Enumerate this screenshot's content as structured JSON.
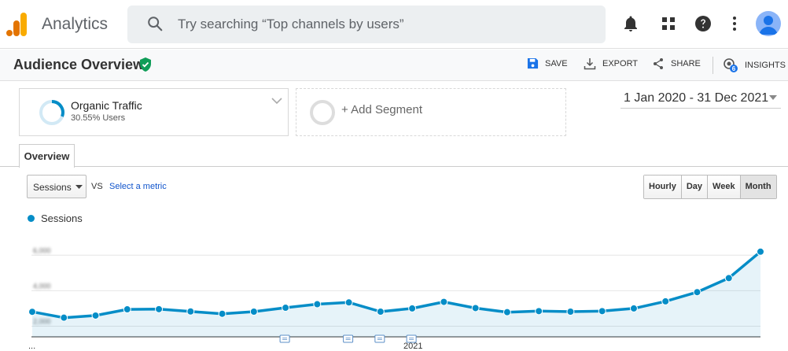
{
  "app": {
    "title": "Analytics",
    "search_placeholder": "Try searching “Top channels by users”",
    "insights_badge": "6"
  },
  "icons": {
    "logo": "analytics-logo-icon",
    "search": "search-icon",
    "notifications": "bell-icon",
    "apps": "apps-grid-icon",
    "help": "help-icon",
    "more": "more-vert-icon",
    "account": "avatar"
  },
  "colors": {
    "accent": "#058dc7",
    "verified": "#0f9d58",
    "logo_orange": "#f9ab00",
    "logo_dark_orange": "#e37400",
    "link": "#1155cc"
  },
  "header": {
    "title": "Audience Overview",
    "actions": {
      "save": "SAVE",
      "export": "EXPORT",
      "share": "SHARE",
      "insights": "INSIGHTS"
    }
  },
  "segments": {
    "active": {
      "name": "Organic Traffic",
      "sub": "30.55% Users"
    },
    "add": "+ Add Segment"
  },
  "date_range": "1 Jan 2020 - 31 Dec 2021",
  "tabs": [
    "Overview"
  ],
  "controls": {
    "metric": "Sessions",
    "vs": "VS",
    "select_metric": "Select a metric",
    "granularity": [
      "Hourly",
      "Day",
      "Week",
      "Month"
    ],
    "active_granularity": "Month"
  },
  "chart_data": {
    "type": "area",
    "series": [
      {
        "name": "Sessions",
        "values": [
          2810,
          2480,
          2600,
          2950,
          2960,
          2830,
          2700,
          2820,
          3040,
          3240,
          3340,
          2820,
          3000,
          3370,
          3020,
          2790,
          2850,
          2820,
          2850,
          3000,
          3400,
          3920,
          4710,
          6200
        ]
      }
    ],
    "x_labels": [
      "...",
      "2021"
    ],
    "y_ticks": [
      "6,000",
      "4,000",
      "2,000"
    ],
    "ylim": [
      1400,
      7300
    ],
    "annotations_at_index": [
      8,
      10,
      11,
      12
    ],
    "grid": true
  }
}
